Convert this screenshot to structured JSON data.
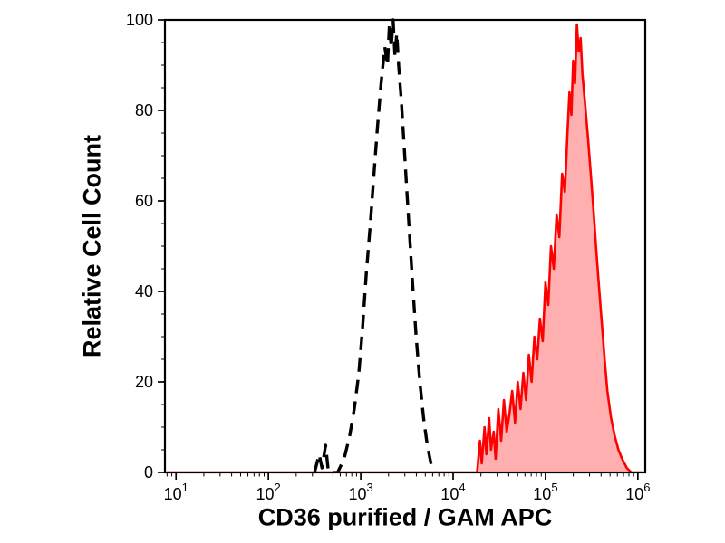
{
  "chart_data": {
    "type": "line",
    "subtype": "flow-cytometry-histogram-overlay",
    "title": "",
    "xlabel": "CD36 purified / GAM APC",
    "ylabel": "Relative Cell Count",
    "x_scale": "log10",
    "x_range_log10": [
      0.88,
      6.08
    ],
    "ylim": [
      0,
      100
    ],
    "y_ticks": [
      0,
      20,
      40,
      60,
      80,
      100
    ],
    "y_minor_step": 5,
    "x_major_ticks_exp": [
      1,
      2,
      3,
      4,
      5,
      6
    ],
    "x_tick_base": "10",
    "grid": "off",
    "legend_position": "none",
    "frame_color": "#000000",
    "series": [
      {
        "name": "negative-control-dashed",
        "color": "#000000",
        "dash": [
          15,
          9
        ],
        "width": 3.4,
        "fill": "none",
        "points": [
          [
            2.5,
            0
          ],
          [
            2.55,
            4
          ],
          [
            2.58,
            1
          ],
          [
            2.62,
            6
          ],
          [
            2.65,
            0
          ],
          [
            2.75,
            0
          ],
          [
            2.82,
            3
          ],
          [
            2.88,
            8
          ],
          [
            2.93,
            14
          ],
          [
            2.98,
            22
          ],
          [
            3.02,
            32
          ],
          [
            3.06,
            44
          ],
          [
            3.1,
            54
          ],
          [
            3.14,
            65
          ],
          [
            3.18,
            76
          ],
          [
            3.22,
            86
          ],
          [
            3.26,
            94
          ],
          [
            3.29,
            90
          ],
          [
            3.31,
            99
          ],
          [
            3.33,
            94
          ],
          [
            3.35,
            100
          ],
          [
            3.37,
            92
          ],
          [
            3.39,
            97
          ],
          [
            3.41,
            90
          ],
          [
            3.44,
            82
          ],
          [
            3.47,
            72
          ],
          [
            3.5,
            62
          ],
          [
            3.53,
            52
          ],
          [
            3.56,
            42
          ],
          [
            3.6,
            30
          ],
          [
            3.64,
            20
          ],
          [
            3.68,
            12
          ],
          [
            3.72,
            6
          ],
          [
            3.76,
            2
          ],
          [
            3.8,
            0
          ]
        ]
      },
      {
        "name": "cd36-apc-stained-red",
        "color": "#ff0000",
        "dash": null,
        "width": 2.6,
        "fill": "rgba(255,64,64,0.42)",
        "points": [
          [
            0.9,
            0
          ],
          [
            4.26,
            0
          ],
          [
            4.29,
            7
          ],
          [
            4.31,
            2
          ],
          [
            4.34,
            10
          ],
          [
            4.36,
            4
          ],
          [
            4.39,
            12
          ],
          [
            4.41,
            5
          ],
          [
            4.44,
            9
          ],
          [
            4.46,
            3
          ],
          [
            4.49,
            14
          ],
          [
            4.52,
            7
          ],
          [
            4.55,
            16
          ],
          [
            4.58,
            9
          ],
          [
            4.61,
            13
          ],
          [
            4.64,
            18
          ],
          [
            4.67,
            11
          ],
          [
            4.7,
            20
          ],
          [
            4.73,
            14
          ],
          [
            4.76,
            22
          ],
          [
            4.79,
            16
          ],
          [
            4.82,
            26
          ],
          [
            4.85,
            20
          ],
          [
            4.88,
            30
          ],
          [
            4.91,
            25
          ],
          [
            4.94,
            34
          ],
          [
            4.97,
            29
          ],
          [
            5.0,
            42
          ],
          [
            5.03,
            37
          ],
          [
            5.06,
            50
          ],
          [
            5.09,
            45
          ],
          [
            5.12,
            57
          ],
          [
            5.15,
            52
          ],
          [
            5.18,
            66
          ],
          [
            5.21,
            62
          ],
          [
            5.24,
            76
          ],
          [
            5.26,
            84
          ],
          [
            5.28,
            79
          ],
          [
            5.3,
            91
          ],
          [
            5.32,
            86
          ],
          [
            5.34,
            99
          ],
          [
            5.36,
            93
          ],
          [
            5.38,
            96
          ],
          [
            5.4,
            88
          ],
          [
            5.43,
            81
          ],
          [
            5.46,
            74
          ],
          [
            5.49,
            66
          ],
          [
            5.52,
            58
          ],
          [
            5.55,
            49
          ],
          [
            5.58,
            41
          ],
          [
            5.61,
            33
          ],
          [
            5.64,
            25
          ],
          [
            5.67,
            18
          ],
          [
            5.71,
            12
          ],
          [
            5.75,
            8
          ],
          [
            5.79,
            5
          ],
          [
            5.83,
            3
          ],
          [
            5.88,
            1
          ],
          [
            5.93,
            0
          ],
          [
            6.06,
            0
          ]
        ]
      }
    ]
  }
}
